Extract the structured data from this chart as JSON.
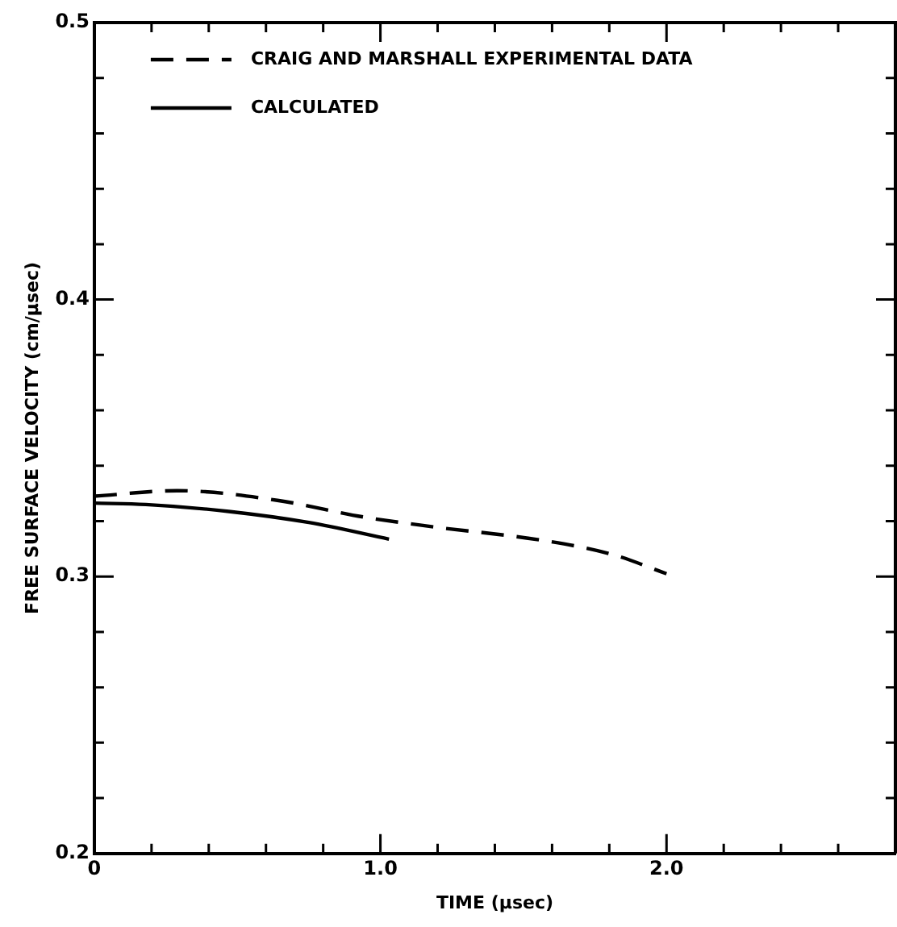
{
  "chart_data": {
    "type": "line",
    "xlabel": "TIME (μsec)",
    "ylabel": "FREE SURFACE VELOCITY (cm/μsec)",
    "legend": "top left",
    "grid": false,
    "xlim": [
      0,
      2.8
    ],
    "ylim": [
      0.2,
      0.5
    ],
    "xticks": [
      0,
      {
        "value": 0.2,
        "label": null
      },
      {
        "value": 0.4,
        "label": null
      },
      {
        "value": 0.6,
        "label": null
      },
      {
        "value": 0.8,
        "label": null
      },
      {
        "value": 1,
        "label": "1.0"
      },
      {
        "value": 1.2,
        "label": null
      },
      {
        "value": 1.4,
        "label": null
      },
      {
        "value": 1.6,
        "label": null
      },
      {
        "value": 1.8,
        "label": null
      },
      {
        "value": 2,
        "label": "2.0"
      },
      {
        "value": 2.2,
        "label": null
      },
      {
        "value": 2.4,
        "label": null
      },
      {
        "value": 2.6,
        "label": null
      }
    ],
    "yticks": [
      0.2,
      {
        "value": 0.22,
        "label": null
      },
      {
        "value": 0.24,
        "label": null
      },
      {
        "value": 0.26,
        "label": null
      },
      {
        "value": 0.28,
        "label": null
      },
      0.3,
      {
        "value": 0.32,
        "label": null
      },
      {
        "value": 0.34,
        "label": null
      },
      {
        "value": 0.36,
        "label": null
      },
      {
        "value": 0.38,
        "label": null
      },
      0.4,
      {
        "value": 0.42,
        "label": null
      },
      {
        "value": 0.44,
        "label": null
      },
      {
        "value": 0.46,
        "label": null
      },
      {
        "value": 0.48,
        "label": null
      },
      0.5
    ],
    "series": [
      {
        "name": "CRAIG AND MARSHALL EXPERIMENTAL DATA",
        "color": "#000000",
        "line_style": "dashed",
        "x": [
          0,
          0.29,
          0.64,
          0.94,
          1.18,
          1.57,
          1.81,
          2.0
        ],
        "values": [
          0.329,
          0.331,
          0.3275,
          0.3215,
          0.318,
          0.313,
          0.308,
          0.301
        ]
      },
      {
        "name": "CALCULATED",
        "color": "#000000",
        "line_style": "solid",
        "x": [
          0,
          0.18,
          0.47,
          0.75,
          1.03
        ],
        "values": [
          0.3265,
          0.326,
          0.3235,
          0.3195,
          0.3135
        ]
      }
    ]
  }
}
